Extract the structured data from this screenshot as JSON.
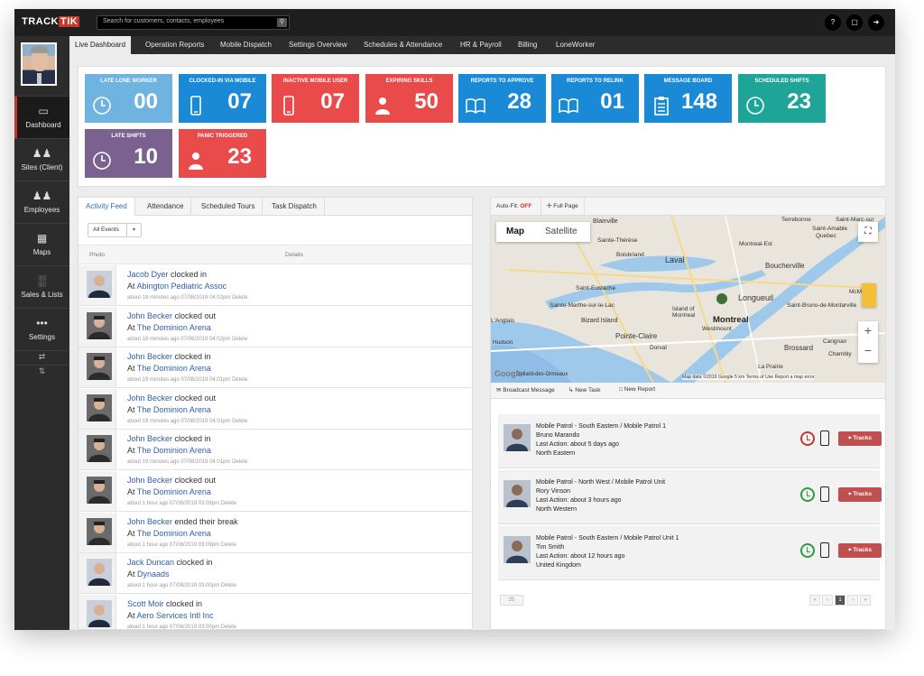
{
  "app": {
    "brand_track": "TRACK",
    "brand_tik": "TIK",
    "search_placeholder": "Search for customers, contacts, employees",
    "help": "?"
  },
  "sidebar": {
    "items": [
      {
        "label": "Dashboard",
        "icon": "monitor-icon"
      },
      {
        "label": "Sites (Client)",
        "icon": "people-icon"
      },
      {
        "label": "Employees",
        "icon": "people-icon"
      },
      {
        "label": "Maps",
        "icon": "map-icon"
      },
      {
        "label": "Sales & Lists",
        "icon": "bar-chart-icon"
      },
      {
        "label": "Settings",
        "icon": "dots-icon"
      }
    ]
  },
  "tabs": [
    "Live Dashboard",
    "Operation Reports",
    "Mobile Dispatch",
    "Settings Overview",
    "Schedules & Attendance",
    "HR & Payroll",
    "Billing",
    "LoneWorker"
  ],
  "tiles": [
    {
      "title": "Late Lone Worker",
      "value": "00",
      "color": "#6fb3e0",
      "icon": "clock-icon"
    },
    {
      "title": "Clocked-in via Mobile",
      "value": "07",
      "color": "#1b8ad6",
      "icon": "mobile-icon"
    },
    {
      "title": "Inactive Mobile User",
      "value": "07",
      "color": "#e94b4b",
      "icon": "mobile-icon"
    },
    {
      "title": "Expiring Skills",
      "value": "50",
      "color": "#e94b4b",
      "icon": "person-icon"
    },
    {
      "title": "Reports to Approve",
      "value": "28",
      "color": "#1b8ad6",
      "icon": "book-icon"
    },
    {
      "title": "Reports to Relink",
      "value": "01",
      "color": "#1b8ad6",
      "icon": "book-icon"
    },
    {
      "title": "Message Board",
      "value": "148",
      "color": "#1b8ad6",
      "icon": "clipboard-icon"
    },
    {
      "title": "Scheduled Shifts",
      "value": "23",
      "color": "#1fa597",
      "icon": "clock-icon"
    },
    {
      "title": "Late Shifts",
      "value": "10",
      "color": "#7b6190",
      "icon": "clock-icon"
    },
    {
      "title": "Panic Triggered",
      "value": "23",
      "color": "#e94b4b",
      "icon": "person-icon"
    }
  ],
  "feed": {
    "tabs": [
      "Activity Feed",
      "Attendance",
      "Scheduled Tours",
      "Task Dispatch"
    ],
    "filter": "All Events",
    "col_photo": "Photo",
    "col_details": "Details",
    "rows": [
      {
        "name": "Jacob Dyer",
        "action": " clocked in",
        "at": "At ",
        "site": "Abington Pediatric Assoc",
        "meta": "about 18 minutes ago   07/08/2019 04:02pm Delete"
      },
      {
        "name": "John Becker",
        "action": " clocked out",
        "at": "At ",
        "site": "The Dominion Arena",
        "meta": "about 18 minutes ago   07/08/2019 04:02pm Delete"
      },
      {
        "name": "John Becker",
        "action": " clocked in",
        "at": "At ",
        "site": "The Dominion Arena",
        "meta": "about 19 minutes ago   07/08/2019 04:01pm Delete"
      },
      {
        "name": "John Becker",
        "action": " clocked out",
        "at": "At ",
        "site": "The Dominion Arena",
        "meta": "about 19 minutes ago   07/08/2019 04:01pm Delete"
      },
      {
        "name": "John Becker",
        "action": " clocked in",
        "at": "At ",
        "site": "The Dominion Arena",
        "meta": "about 19 minutes ago   07/08/2019 04:01pm Delete"
      },
      {
        "name": "John Becker",
        "action": " clocked out",
        "at": "At ",
        "site": "The Dominion Arena",
        "meta": "about 1 hour ago   07/08/2019 03:09pm Delete"
      },
      {
        "name": "John Becker",
        "action": " ended their break",
        "at": "At ",
        "site": "The Dominion Arena",
        "meta": "about 1 hour ago   07/08/2019 03:09pm Delete"
      },
      {
        "name": "Jack Duncan",
        "action": " clocked in",
        "at": "At ",
        "site": "Dynaads",
        "meta": "about 1 hour ago   07/08/2019 03:00pm Delete"
      },
      {
        "name": "Scott Moir",
        "action": " clocked in",
        "at": "At ",
        "site": "Aero Services Intl Inc",
        "meta": "about 1 hour ago   07/08/2019 03:00pm Delete"
      }
    ]
  },
  "map": {
    "autofit_label": "Auto-Fit: ",
    "autofit_value": "OFF",
    "fullpage": "Full Page",
    "type_map": "Map",
    "type_satellite": "Satellite",
    "places": [
      "Blainville",
      "Terrebonne",
      "Sainte-Thérèse",
      "Saint-Amable",
      "Boisbriand",
      "Laval",
      "Montreal-Est",
      "Boucherville",
      "Saint-Eustache",
      "Longueuil",
      "Sainte-Marthe-sur-le-Lac",
      "Island of Montreal",
      "Montreal",
      "Bizard Island",
      "Westmount",
      "Pointe-Claire",
      "Dorval",
      "Brossard",
      "Carignan",
      "Chambly",
      "La Prairie",
      "Hudson",
      "L'Anglais",
      "Dollard-des-Ormeaux",
      "Saint-Bruno-de-Montarville",
      "Saint-Marc-sur",
      "Quebec",
      "McM"
    ],
    "attribution": "Map data ©2019 Google   5 km          Terms of Use   Report a map error",
    "google": "Google",
    "actions": [
      "Broadcast Message",
      "New Task",
      "New Report"
    ]
  },
  "patrols": [
    {
      "unit": "Mobile Patrol - South Eastern / Mobile Patrol 1",
      "name": "Bruno Marando",
      "last": "Last Action: about 5 days ago",
      "region": "North Eastern",
      "clock_color": "#c0392b"
    },
    {
      "unit": "Mobile Patrol - North West / Mobile Patrol Unit",
      "name": "Rory Vinson",
      "last": "Last Action: about 3 hours ago",
      "region": "North Western",
      "clock_color": "#2e9b3a"
    },
    {
      "unit": "Mobile Patrol - South Eastern / Mobile Patrol Unit 1",
      "name": "Tim Smith",
      "last": "Last Action: about 12 hours ago",
      "region": "United Kingdom",
      "clock_color": "#2e9b3a"
    }
  ],
  "patrol_button": "Tracks",
  "pager": {
    "size": "25",
    "current": "1"
  }
}
